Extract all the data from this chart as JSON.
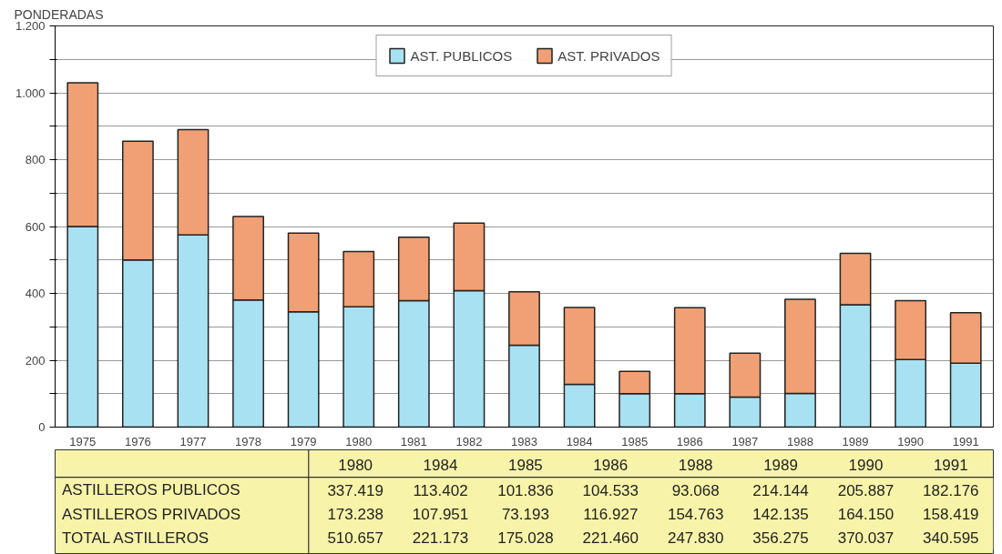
{
  "chart_data": [
    {
      "type": "bar",
      "stacked": true,
      "ylabel": "PONDERADAS",
      "categories": [
        "1975",
        "1976",
        "1977",
        "1978",
        "1979",
        "1980",
        "1981",
        "1982",
        "1983",
        "1984",
        "1985",
        "1986",
        "1987",
        "1988",
        "1989",
        "1990",
        "1991"
      ],
      "series": [
        {
          "name": "AST. PUBLICOS",
          "color": "#a8e2f2",
          "values": [
            600,
            500,
            575,
            380,
            345,
            360,
            378,
            408,
            245,
            128,
            100,
            100,
            90,
            101,
            366,
            202,
            191
          ]
        },
        {
          "name": "AST. PRIVADOS",
          "color": "#f0a074",
          "values": [
            430,
            355,
            315,
            250,
            235,
            165,
            190,
            202,
            160,
            230,
            67,
            257,
            131,
            281,
            154,
            176,
            151
          ]
        }
      ],
      "ylim": [
        0,
        1200
      ],
      "yticks": [
        0,
        {
          "value": 100,
          "label": null
        },
        200,
        {
          "value": 300,
          "label": null
        },
        400,
        {
          "value": 500,
          "label": null
        },
        600,
        {
          "value": 700,
          "label": null
        },
        800,
        {
          "value": 900,
          "label": null
        },
        {
          "value": 1000,
          "label": "1.000"
        },
        {
          "value": 1100,
          "label": null
        },
        {
          "value": 1200,
          "label": "1.200"
        }
      ],
      "grid": "y",
      "legend": "top"
    },
    {
      "type": "heatmap",
      "color": "#f7f3a8",
      "categories": [
        "1980",
        "1984",
        "1985",
        "1986",
        "1988",
        "1989",
        "1990",
        "1991"
      ],
      "y_categories": [
        "ASTILLEROS PUBLICOS",
        "ASTILLEROS PRIVADOS",
        "TOTAL ASTILLEROS"
      ],
      "cells": [
        [
          337419,
          113402,
          101836,
          104533,
          93068,
          214144,
          205887,
          182176
        ],
        [
          173238,
          107951,
          73193,
          116927,
          154763,
          142135,
          164150,
          158419
        ],
        [
          510657,
          221173,
          175028,
          221460,
          247830,
          356275,
          370037,
          340595
        ]
      ],
      "cell_labels": [
        [
          "337.419",
          "113.402",
          "101.836",
          "104.533",
          "93.068",
          "214.144",
          "205.887",
          "182.176"
        ],
        [
          "173.238",
          "107.951",
          "73.193",
          "116.927",
          "154.763",
          "142.135",
          "164.150",
          "158.419"
        ],
        [
          "510.657",
          "221.173",
          "175.028",
          "221.460",
          "247.830",
          "356.275",
          "370.037",
          "340.595"
        ]
      ]
    }
  ]
}
